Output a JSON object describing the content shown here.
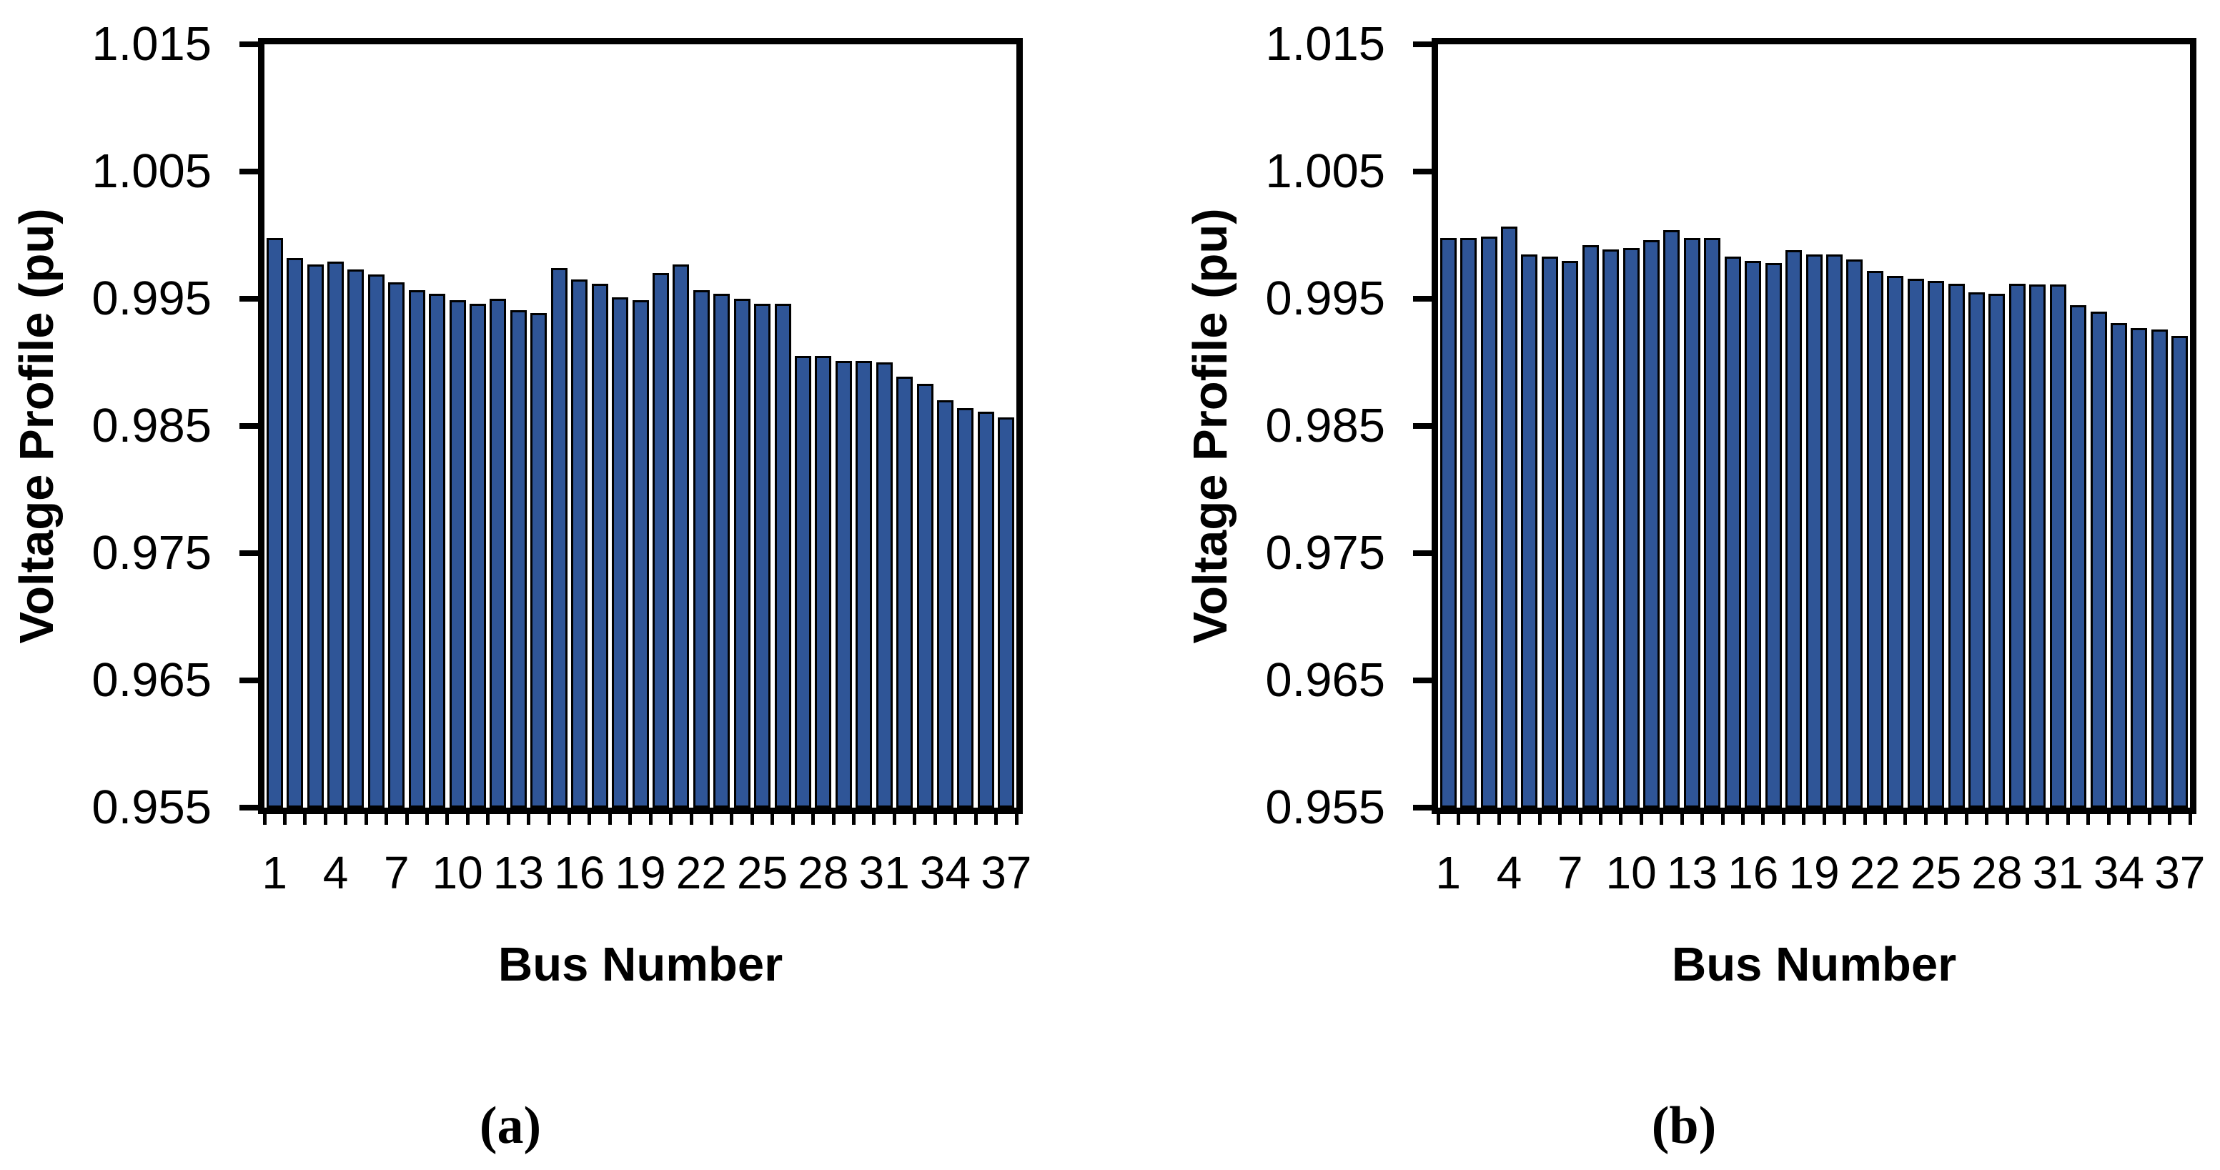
{
  "figure": {
    "background": "#ffffff"
  },
  "chart_data": [
    {
      "type": "bar",
      "panel_caption": "(a)",
      "title": "",
      "xlabel": "Bus Number",
      "ylabel": "Voltage Profile (pu)",
      "ylim": [
        0.955,
        1.015
      ],
      "ytick_interval": 0.01,
      "ytick_labels": [
        "1.015",
        "1.005",
        "0.995",
        "0.985",
        "0.975",
        "0.965",
        "0.955"
      ],
      "xtick_labels": [
        "1",
        "4",
        "7",
        "10",
        "13",
        "16",
        "19",
        "22",
        "25",
        "28",
        "31",
        "34",
        "37"
      ],
      "grid": false,
      "legend": "none",
      "bar_fill": "#2F5597",
      "bar_border": "#000000",
      "categories": [
        1,
        2,
        3,
        4,
        5,
        6,
        7,
        8,
        9,
        10,
        11,
        12,
        13,
        14,
        15,
        16,
        17,
        18,
        19,
        20,
        21,
        22,
        23,
        24,
        25,
        26,
        27,
        28,
        29,
        30,
        31,
        32,
        33,
        34,
        35,
        36,
        37
      ],
      "values": [
        0.9998,
        0.9982,
        0.9977,
        0.9979,
        0.9973,
        0.9969,
        0.9963,
        0.9957,
        0.9954,
        0.9949,
        0.9946,
        0.995,
        0.9941,
        0.9939,
        0.9974,
        0.9965,
        0.9962,
        0.9951,
        0.9949,
        0.997,
        0.9977,
        0.9957,
        0.9954,
        0.995,
        0.9946,
        0.9946,
        0.9905,
        0.9905,
        0.9901,
        0.9901,
        0.99,
        0.9889,
        0.9883,
        0.987,
        0.9864,
        0.9861,
        0.9857
      ]
    },
    {
      "type": "bar",
      "panel_caption": "(b)",
      "title": "",
      "xlabel": "Bus Number",
      "ylabel": "Voltage Profile (pu)",
      "ylim": [
        0.955,
        1.015
      ],
      "ytick_interval": 0.01,
      "ytick_labels": [
        "1.015",
        "1.005",
        "0.995",
        "0.985",
        "0.975",
        "0.965",
        "0.955"
      ],
      "xtick_labels": [
        "1",
        "4",
        "7",
        "10",
        "13",
        "16",
        "19",
        "22",
        "25",
        "28",
        "31",
        "34",
        "37"
      ],
      "grid": false,
      "legend": "none",
      "bar_fill": "#2F5597",
      "bar_border": "#000000",
      "categories": [
        1,
        2,
        3,
        4,
        5,
        6,
        7,
        8,
        9,
        10,
        11,
        12,
        13,
        14,
        15,
        16,
        17,
        18,
        19,
        20,
        21,
        22,
        23,
        24,
        25,
        26,
        27,
        28,
        29,
        30,
        31,
        32,
        33,
        34,
        35,
        36,
        37
      ],
      "values": [
        0.9998,
        0.9998,
        0.9999,
        1.0007,
        0.9985,
        0.9983,
        0.998,
        0.9992,
        0.9989,
        0.999,
        0.9996,
        1.0004,
        0.9998,
        0.9998,
        0.9983,
        0.998,
        0.9978,
        0.9988,
        0.9985,
        0.9985,
        0.9981,
        0.9972,
        0.9968,
        0.9966,
        0.9964,
        0.9962,
        0.9955,
        0.9954,
        0.9962,
        0.9961,
        0.9961,
        0.9945,
        0.994,
        0.9931,
        0.9927,
        0.9926,
        0.9921
      ]
    }
  ]
}
